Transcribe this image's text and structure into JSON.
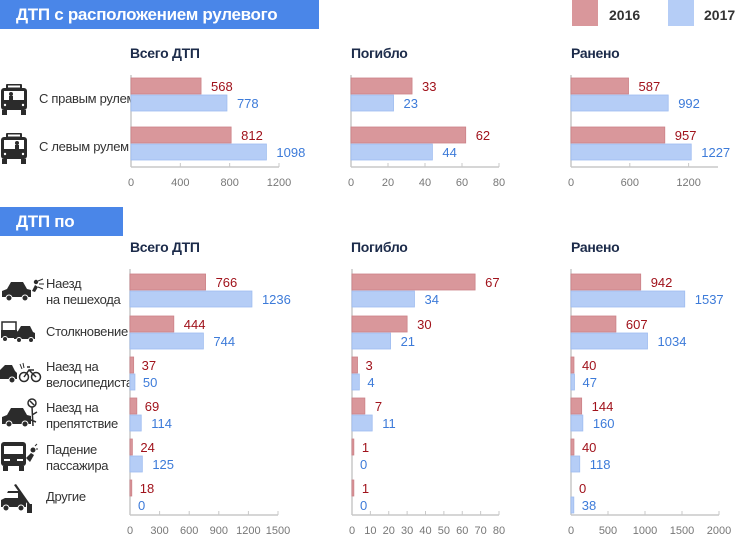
{
  "legend": [
    {
      "label": "2016",
      "color": "#d9979b"
    },
    {
      "label": "2017",
      "color": "#b5cdf6"
    }
  ],
  "colors": {
    "section_bg": "#4a86e8",
    "bar_2016": "#d9979b",
    "bar_2016_stroke": "#cc8288",
    "bar_2017": "#b5cdf6",
    "bar_2017_stroke": "#9fbdf0",
    "label_2016": "#a0121b",
    "label_2017": "#3d7bd9",
    "axis": "#c8c8c8",
    "tick_label": "#777777"
  },
  "sections": [
    {
      "title": "ДТП с расположением рулевого управления",
      "rows": [
        {
          "label_lines": [
            "С правым рулем"
          ],
          "icon": "bus-front-right-driver-icon"
        },
        {
          "label_lines": [
            "С левым рулем"
          ],
          "icon": "bus-front-left-driver-icon"
        }
      ]
    },
    {
      "title": "ДТП по видам",
      "rows": [
        {
          "label_lines": [
            "Наезд",
            "на пешехода"
          ],
          "icon": "car-hits-pedestrian-icon"
        },
        {
          "label_lines": [
            "Столкновение"
          ],
          "icon": "car-collision-icon"
        },
        {
          "label_lines": [
            "Наезд на",
            "велосипедиста"
          ],
          "icon": "car-hits-cyclist-icon"
        },
        {
          "label_lines": [
            "Наезд на",
            "препятствие"
          ],
          "icon": "car-hits-obstacle-icon"
        },
        {
          "label_lines": [
            "Падение",
            "пассажира"
          ],
          "icon": "passenger-falls-from-bus-icon"
        },
        {
          "label_lines": [
            "Другие"
          ],
          "icon": "car-other-accident-icon"
        }
      ]
    }
  ],
  "chart_data": [
    {
      "type": "bar",
      "orientation": "horizontal",
      "section": "ДТП с расположением рулевого управления",
      "title": "Всего ДТП",
      "categories": [
        "С правым рулем",
        "С левым рулем"
      ],
      "series": [
        {
          "name": "2016",
          "values": [
            568,
            812
          ]
        },
        {
          "name": "2017",
          "values": [
            778,
            1098
          ]
        }
      ],
      "xlim": [
        0,
        1200
      ],
      "ticks": [
        0,
        400,
        800,
        1200
      ],
      "grid": false,
      "legend": "top-right"
    },
    {
      "type": "bar",
      "orientation": "horizontal",
      "section": "ДТП с расположением рулевого управления",
      "title": "Погибло",
      "categories": [
        "С правым рулем",
        "С левым рулем"
      ],
      "series": [
        {
          "name": "2016",
          "values": [
            33,
            62
          ]
        },
        {
          "name": "2017",
          "values": [
            23,
            44
          ]
        }
      ],
      "xlim": [
        0,
        80
      ],
      "ticks": [
        0,
        20,
        40,
        60,
        80
      ],
      "grid": false,
      "legend": "top-right"
    },
    {
      "type": "bar",
      "orientation": "horizontal",
      "section": "ДТП с расположением рулевого управления",
      "title": "Ранено",
      "categories": [
        "С правым рулем",
        "С левым рулем"
      ],
      "series": [
        {
          "name": "2016",
          "values": [
            587,
            957
          ]
        },
        {
          "name": "2017",
          "values": [
            992,
            1227
          ]
        }
      ],
      "xlim": [
        0,
        1500
      ],
      "ticks": [
        0,
        600,
        1200
      ],
      "grid": false,
      "legend": "top-right"
    },
    {
      "type": "bar",
      "orientation": "horizontal",
      "section": "ДТП по видам",
      "title": "Всего ДТП",
      "categories": [
        "Наезд на пешехода",
        "Столкновение",
        "Наезд на велосипедиста",
        "Наезд на препятствие",
        "Падение пассажира",
        "Другие"
      ],
      "series": [
        {
          "name": "2016",
          "values": [
            766,
            444,
            37,
            69,
            24,
            18
          ]
        },
        {
          "name": "2017",
          "values": [
            1236,
            744,
            50,
            114,
            125,
            0
          ]
        }
      ],
      "xlim": [
        0,
        1500
      ],
      "ticks": [
        0,
        300,
        600,
        900,
        1200,
        1500
      ],
      "grid": false,
      "legend": "top-right"
    },
    {
      "type": "bar",
      "orientation": "horizontal",
      "section": "ДТП по видам",
      "title": "Погибло",
      "categories": [
        "Наезд на пешехода",
        "Столкновение",
        "Наезд на велосипедиста",
        "Наезд на препятствие",
        "Падение пассажира",
        "Другие"
      ],
      "series": [
        {
          "name": "2016",
          "values": [
            67,
            30,
            3,
            7,
            1,
            1
          ]
        },
        {
          "name": "2017",
          "values": [
            34,
            21,
            4,
            11,
            0,
            0
          ]
        }
      ],
      "xlim": [
        0,
        80
      ],
      "ticks": [
        0,
        10,
        20,
        30,
        40,
        50,
        60,
        70,
        80
      ],
      "grid": false,
      "legend": "top-right"
    },
    {
      "type": "bar",
      "orientation": "horizontal",
      "section": "ДТП по видам",
      "title": "Ранено",
      "categories": [
        "Наезд на пешехода",
        "Столкновение",
        "Наезд на велосипедиста",
        "Наезд на препятствие",
        "Падение пассажира",
        "Другие"
      ],
      "series": [
        {
          "name": "2016",
          "values": [
            942,
            607,
            40,
            144,
            40,
            0
          ]
        },
        {
          "name": "2017",
          "values": [
            1537,
            1034,
            47,
            160,
            118,
            38
          ]
        }
      ],
      "xlim": [
        0,
        2000
      ],
      "ticks": [
        0,
        500,
        1000,
        1500,
        2000
      ],
      "grid": false,
      "legend": "top-right"
    }
  ]
}
